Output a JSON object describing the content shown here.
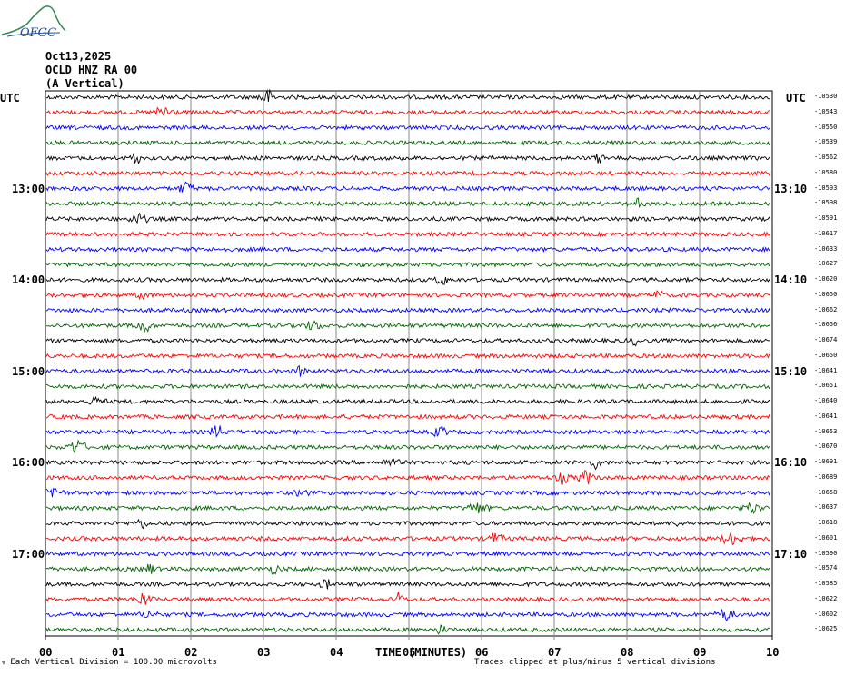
{
  "logo": {
    "text": "OFGC",
    "icon": "mountain-logo-icon"
  },
  "header": {
    "date": "Oct13,2025",
    "station": "OCLD HNZ RA 00",
    "component": "(A Vertical)"
  },
  "utc_left": "UTC",
  "utc_right": "UTC",
  "footer": {
    "scale": "Each Vertical Division =  100.00 microvolts",
    "clip": "Traces clipped at plus/minus 5 vertical divisions"
  },
  "chart_data": {
    "type": "line",
    "title": "",
    "xlabel": "TIME (MINUTES)",
    "x_ticks": [
      "00",
      "01",
      "02",
      "03",
      "04",
      "05",
      "06",
      "07",
      "08",
      "09",
      "10"
    ],
    "xlim": [
      0,
      10
    ],
    "colors": [
      "#000000",
      "#ff0000",
      "#0000ff",
      "#006400"
    ],
    "grid": "vertical lines each minute",
    "left_time_labels": [
      {
        "row": 6,
        "label": "13:00"
      },
      {
        "row": 12,
        "label": "14:00"
      },
      {
        "row": 18,
        "label": "15:00"
      },
      {
        "row": 24,
        "label": "16:00"
      },
      {
        "row": 30,
        "label": "17:00"
      }
    ],
    "right_time_labels": [
      {
        "row": 6,
        "label": "13:10"
      },
      {
        "row": 12,
        "label": "14:10"
      },
      {
        "row": 18,
        "label": "15:10"
      },
      {
        "row": 24,
        "label": "16:10"
      },
      {
        "row": 30,
        "label": "17:10"
      }
    ],
    "trace_offsets": [
      "-10530",
      "-10543",
      "-10550",
      "-10539",
      "-10562",
      "-10580",
      "-10593",
      "-10598",
      "-10591",
      "-10617",
      "-10633",
      "-10627",
      "-10620",
      "-10650",
      "-10662",
      "-10656",
      "-10674",
      "-10650",
      "-10641",
      "-10651",
      "-10640",
      "-10641",
      "-10653",
      "-10670",
      "-10691",
      "-10689",
      "-10658",
      "-10637",
      "-10618",
      "-10601",
      "-10590",
      "-10574",
      "-10585",
      "-10622",
      "-10602",
      "-10625"
    ]
  }
}
